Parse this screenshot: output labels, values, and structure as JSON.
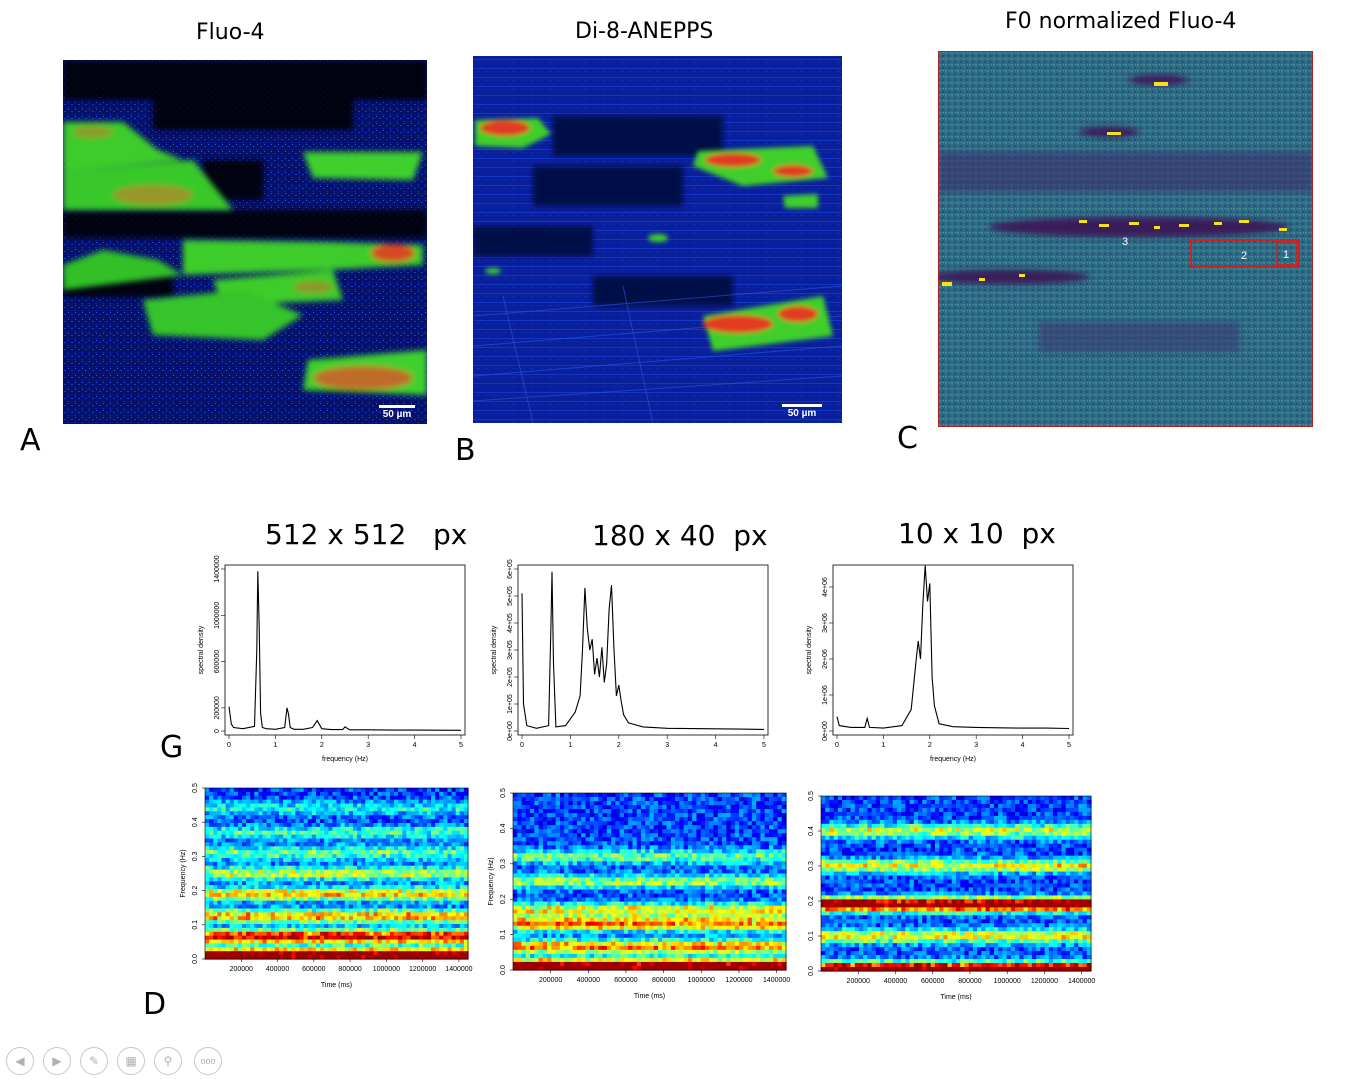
{
  "panels": {
    "a": {
      "title": "Fluo-4",
      "letter": "A",
      "scale": "50 µm"
    },
    "b": {
      "title": "Di-8-ANEPPS",
      "letter": "B",
      "scale": "50 µm"
    },
    "c": {
      "title": "F0 normalized Fluo-4",
      "letter": "C",
      "roi_labels": [
        "3",
        "2",
        "1"
      ]
    }
  },
  "resolution_labels": [
    {
      "size": "512 x 512",
      "unit": "px"
    },
    {
      "size": "180 x 40",
      "unit": "px"
    },
    {
      "size": "10 x 10",
      "unit": "px"
    }
  ],
  "row_labels": {
    "g": "G",
    "d": "D"
  },
  "toolbar": {
    "icons": [
      "prev-icon",
      "next-icon",
      "pen-icon",
      "slides-icon",
      "zoom-icon",
      "more-icon"
    ],
    "more_label": "ooo"
  },
  "chart_data": [
    {
      "type": "line",
      "panel": "G-1",
      "xlabel": "frequency (Hz)",
      "ylabel": "spectral density",
      "xlim": [
        0,
        5
      ],
      "ylim": [
        0,
        1400000
      ],
      "xticks": [
        "0",
        "1",
        "2",
        "3",
        "4",
        "5"
      ],
      "yticks": [
        "0",
        "200000",
        "600000",
        "1000000",
        "1400000"
      ],
      "ytick_values": [
        0,
        200000,
        600000,
        1000000,
        1400000
      ],
      "x": [
        0,
        0.05,
        0.1,
        0.3,
        0.55,
        0.6,
        0.62,
        0.65,
        0.68,
        0.72,
        0.8,
        1.0,
        1.2,
        1.25,
        1.28,
        1.32,
        1.4,
        1.6,
        1.8,
        1.9,
        2.0,
        2.2,
        2.45,
        2.5,
        2.6,
        3.0,
        3.5,
        4.0,
        4.5,
        5.0
      ],
      "y": [
        210000,
        60000,
        30000,
        20000,
        40000,
        700000,
        1380000,
        900000,
        150000,
        30000,
        20000,
        15000,
        30000,
        200000,
        150000,
        30000,
        15000,
        15000,
        30000,
        90000,
        20000,
        12000,
        12000,
        35000,
        10000,
        10000,
        8000,
        8000,
        7000,
        6000
      ]
    },
    {
      "type": "line",
      "panel": "G-2",
      "xlabel": "",
      "ylabel": "spectral density",
      "xlim": [
        0,
        5
      ],
      "ylim": [
        0,
        600000
      ],
      "xticks": [
        "0",
        "1",
        "2",
        "3",
        "4",
        "5"
      ],
      "yticks": [
        "0e+00",
        "1e+05",
        "2e+05",
        "3e+05",
        "4e+05",
        "5e+05",
        "6e+05"
      ],
      "ytick_values": [
        0,
        100000,
        200000,
        300000,
        400000,
        500000,
        600000
      ],
      "x": [
        0,
        0.03,
        0.1,
        0.3,
        0.55,
        0.6,
        0.62,
        0.65,
        0.7,
        0.9,
        1.0,
        1.1,
        1.2,
        1.25,
        1.3,
        1.35,
        1.4,
        1.45,
        1.5,
        1.55,
        1.6,
        1.65,
        1.7,
        1.75,
        1.8,
        1.85,
        1.9,
        1.95,
        2.0,
        2.05,
        2.1,
        2.2,
        2.5,
        3.0,
        3.5,
        4.0,
        4.5,
        5.0
      ],
      "y": [
        510000,
        100000,
        20000,
        10000,
        20000,
        400000,
        590000,
        250000,
        15000,
        20000,
        45000,
        70000,
        130000,
        300000,
        530000,
        380000,
        300000,
        340000,
        210000,
        270000,
        200000,
        310000,
        180000,
        250000,
        450000,
        540000,
        300000,
        130000,
        170000,
        110000,
        60000,
        30000,
        15000,
        10000,
        9000,
        8000,
        7000,
        6000
      ]
    },
    {
      "type": "line",
      "panel": "G-3",
      "xlabel": "frequency (Hz)",
      "ylabel": "spectral density",
      "xlim": [
        0,
        5
      ],
      "ylim": [
        0,
        4500000
      ],
      "xticks": [
        "0",
        "1",
        "2",
        "3",
        "4",
        "5"
      ],
      "yticks": [
        "0e+00",
        "1e+06",
        "2e+06",
        "3e+06",
        "4e+06"
      ],
      "ytick_values": [
        0,
        1000000,
        2000000,
        3000000,
        4000000
      ],
      "x": [
        0,
        0.05,
        0.3,
        0.6,
        0.65,
        0.7,
        1.0,
        1.4,
        1.6,
        1.7,
        1.75,
        1.8,
        1.85,
        1.9,
        1.95,
        2.0,
        2.05,
        2.1,
        2.2,
        2.5,
        3.0,
        3.5,
        4.0,
        4.5,
        5.0
      ],
      "y": [
        400000,
        150000,
        100000,
        100000,
        350000,
        100000,
        80000,
        150000,
        600000,
        1900000,
        2500000,
        2000000,
        3500000,
        4600000,
        3600000,
        4100000,
        1500000,
        700000,
        200000,
        120000,
        100000,
        90000,
        80000,
        80000,
        70000
      ]
    },
    {
      "type": "heatmap",
      "panel": "D-1",
      "xlabel": "Time (ms)",
      "ylabel": "Frequency (Hz)",
      "xlim": [
        0,
        1450000
      ],
      "ylim": [
        0,
        0.5
      ],
      "xticks": [
        "200000",
        "400000",
        "600000",
        "800000",
        "1000000",
        "1200000",
        "1400000"
      ],
      "xtick_values": [
        200000,
        400000,
        600000,
        800000,
        1000000,
        1200000,
        1400000
      ],
      "yticks": [
        "0.0",
        "0.1",
        "0.2",
        "0.3",
        "0.4",
        "0.5"
      ],
      "ytick_values": [
        0.0,
        0.1,
        0.2,
        0.3,
        0.4,
        0.5
      ],
      "bands": [
        {
          "freq": 0.01,
          "level": 1.0
        },
        {
          "freq": 0.065,
          "level": 0.8
        },
        {
          "freq": 0.125,
          "level": 0.55
        },
        {
          "freq": 0.19,
          "level": 0.5
        },
        {
          "freq": 0.25,
          "level": 0.4
        },
        {
          "freq": 0.31,
          "level": 0.3
        },
        {
          "freq": 0.37,
          "level": 0.25
        },
        {
          "freq": 0.44,
          "level": 0.2
        }
      ]
    },
    {
      "type": "heatmap",
      "panel": "D-2",
      "xlabel": "Time (ms)",
      "ylabel": "Frequency (Hz)",
      "xlim": [
        0,
        1450000
      ],
      "ylim": [
        0,
        0.5
      ],
      "xticks": [
        "200000",
        "400000",
        "600000",
        "800000",
        "1000000",
        "1200000",
        "1400000"
      ],
      "xtick_values": [
        200000,
        400000,
        600000,
        800000,
        1000000,
        1200000,
        1400000
      ],
      "yticks": [
        "0.0",
        "0.1",
        "0.2",
        "0.3",
        "0.4",
        "0.5"
      ],
      "ytick_values": [
        0.0,
        0.1,
        0.2,
        0.3,
        0.4,
        0.5
      ],
      "bands": [
        {
          "freq": 0.01,
          "level": 1.0
        },
        {
          "freq": 0.065,
          "level": 0.6
        },
        {
          "freq": 0.13,
          "level": 0.6
        },
        {
          "freq": 0.17,
          "level": 0.45
        },
        {
          "freq": 0.25,
          "level": 0.35
        },
        {
          "freq": 0.32,
          "level": 0.3
        }
      ]
    },
    {
      "type": "heatmap",
      "panel": "D-3",
      "xlabel": "Time (ms)",
      "ylabel": "",
      "xlim": [
        0,
        1450000
      ],
      "ylim": [
        0,
        0.5
      ],
      "xticks": [
        "200000",
        "400000",
        "600000",
        "800000",
        "1000000",
        "1200000",
        "1400000"
      ],
      "xtick_values": [
        200000,
        400000,
        600000,
        800000,
        1000000,
        1200000,
        1400000
      ],
      "yticks": [
        "0.0",
        "0.1",
        "0.2",
        "0.3",
        "0.4",
        "0.5"
      ],
      "ytick_values": [
        0.0,
        0.1,
        0.2,
        0.3,
        0.4,
        0.5
      ],
      "bands": [
        {
          "freq": 0.005,
          "level": 1.0
        },
        {
          "freq": 0.19,
          "level": 0.95
        },
        {
          "freq": 0.1,
          "level": 0.45
        },
        {
          "freq": 0.3,
          "level": 0.45
        },
        {
          "freq": 0.4,
          "level": 0.4
        }
      ]
    }
  ]
}
